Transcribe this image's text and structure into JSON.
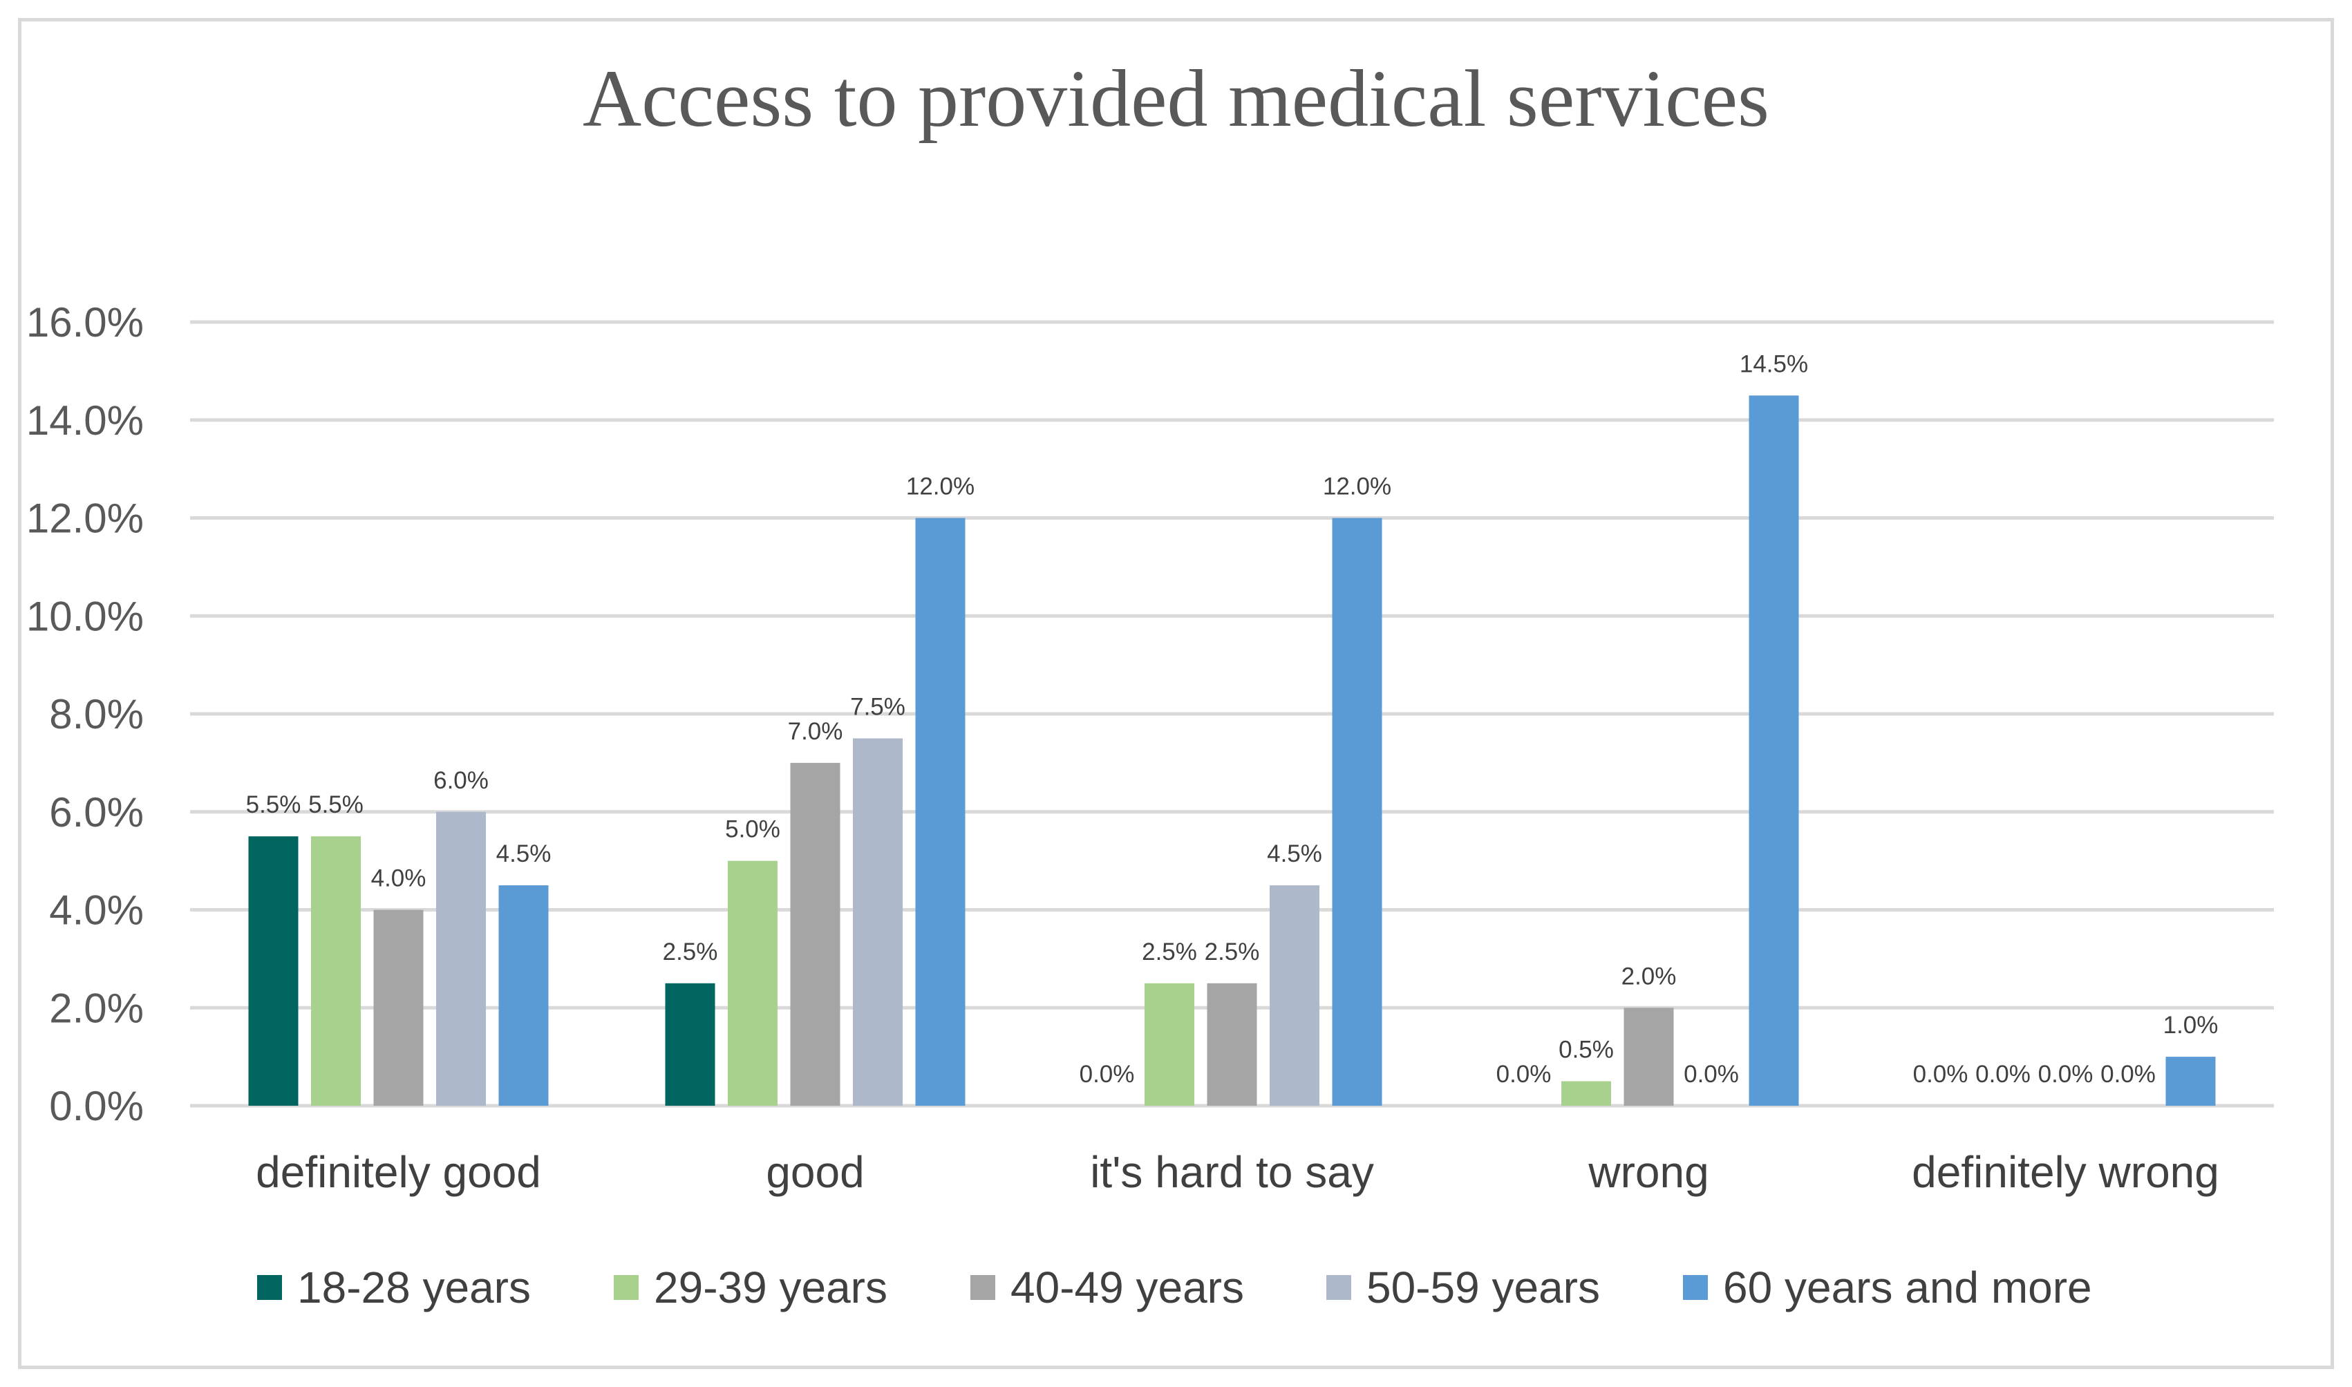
{
  "chart_data": {
    "type": "bar",
    "title": "Access to provided medical services",
    "xlabel": "",
    "ylabel": "",
    "ylim": [
      0,
      16
    ],
    "y_ticks": [
      "0.0%",
      "2.0%",
      "4.0%",
      "6.0%",
      "8.0%",
      "10.0%",
      "12.0%",
      "14.0%",
      "16.0%"
    ],
    "categories": [
      "definitely good",
      "good",
      "it's hard to say",
      "wrong",
      "definitely wrong"
    ],
    "series": [
      {
        "name": "18-28 years",
        "color": "#00645f",
        "values": [
          5.5,
          2.5,
          0.0,
          0.0,
          0.0
        ],
        "labels": [
          "5.5%",
          "2.5%",
          "0.0%",
          "0.0%",
          "0.0%"
        ]
      },
      {
        "name": "29-39 years",
        "color": "#a9d18e",
        "values": [
          5.5,
          5.0,
          2.5,
          0.5,
          0.0
        ],
        "labels": [
          "5.5%",
          "5.0%",
          "2.5%",
          "0.5%",
          "0.0%"
        ]
      },
      {
        "name": "40-49 years",
        "color": "#a5a5a5",
        "values": [
          4.0,
          7.0,
          2.5,
          2.0,
          0.0
        ],
        "labels": [
          "4.0%",
          "7.0%",
          "2.5%",
          "2.0%",
          "0.0%"
        ]
      },
      {
        "name": "50-59 years",
        "color": "#adb9ca",
        "values": [
          6.0,
          7.5,
          4.5,
          0.0,
          0.0
        ],
        "labels": [
          "6.0%",
          "7.5%",
          "4.5%",
          "0.0%",
          "0.0%"
        ]
      },
      {
        "name": "60 years and more",
        "color": "#5b9bd5",
        "values": [
          4.5,
          12.0,
          12.0,
          14.5,
          1.0
        ],
        "labels": [
          "4.5%",
          "12.0%",
          "12.0%",
          "14.5%",
          "1.0%"
        ]
      }
    ],
    "grid": true,
    "legend_position": "bottom"
  }
}
